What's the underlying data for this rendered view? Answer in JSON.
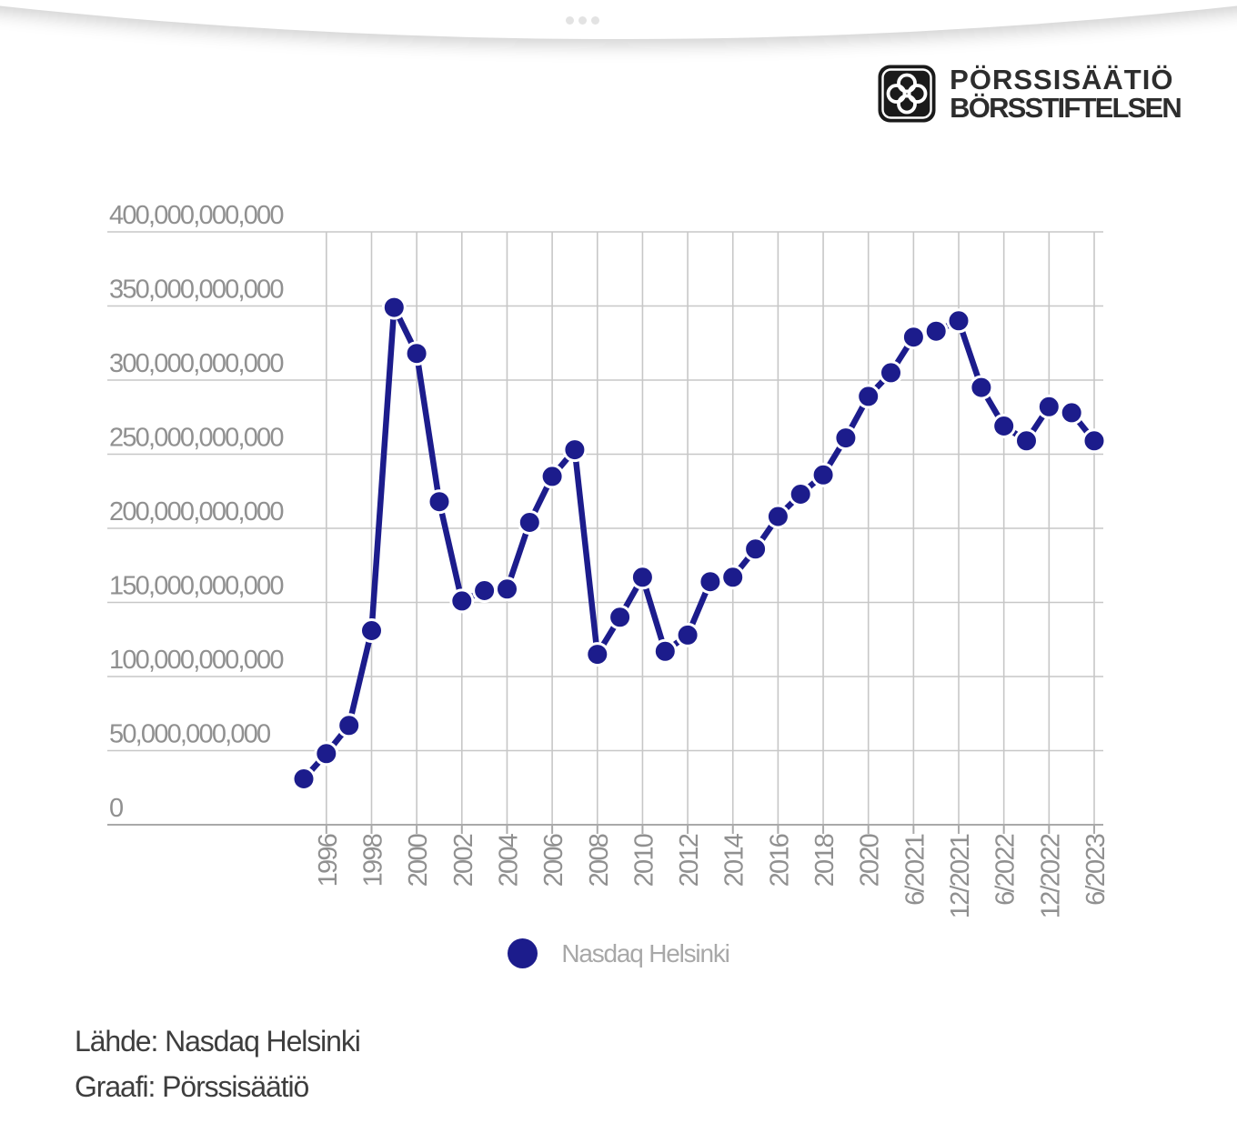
{
  "window": {
    "handle_dots_icon": "ellipsis-handle"
  },
  "header": {
    "logo_icon": "porssisaatio-clover-icon",
    "logo_line1": "PÖRSSISÄÄTIÖ",
    "logo_line2": "BÖRSSTIFTELSEN"
  },
  "chart_data": {
    "type": "line",
    "categories": [
      "1995",
      "1996",
      "1997",
      "1998",
      "1999",
      "2000",
      "2001",
      "2002",
      "2003",
      "2004",
      "2005",
      "2006",
      "2007",
      "2008",
      "2009",
      "2010",
      "2011",
      "2012",
      "2013",
      "2014",
      "2015",
      "2016",
      "2017",
      "2018",
      "2019",
      "2020",
      "3/2021",
      "6/2021",
      "9/2021",
      "12/2021",
      "3/2022",
      "6/2022",
      "9/2022",
      "12/2022",
      "3/2023",
      "6/2023"
    ],
    "series": [
      {
        "name": "Nasdaq Helsinki",
        "color": "#1c1c8c",
        "values": [
          31000000000,
          48000000000,
          67000000000,
          131000000000,
          349000000000,
          318000000000,
          218000000000,
          151000000000,
          158000000000,
          159000000000,
          204000000000,
          235000000000,
          253000000000,
          115000000000,
          140000000000,
          167000000000,
          117000000000,
          128000000000,
          164000000000,
          167000000000,
          186000000000,
          208000000000,
          223000000000,
          236000000000,
          261000000000,
          289000000000,
          305000000000,
          329000000000,
          333000000000,
          340000000000,
          295000000000,
          269000000000,
          259000000000,
          282000000000,
          278000000000,
          259000000000
        ]
      }
    ],
    "x_tick_labels": [
      "1996",
      "1998",
      "2000",
      "2002",
      "2004",
      "2006",
      "2008",
      "2010",
      "2012",
      "2014",
      "2016",
      "2018",
      "2020",
      "6/2021",
      "12/2021",
      "6/2022",
      "12/2022",
      "6/2023"
    ],
    "y_tick_labels": [
      "0",
      "50,000,000,000",
      "100,000,000,000",
      "150,000,000,000",
      "200,000,000,000",
      "250,000,000,000",
      "300,000,000,000",
      "350,000,000,000",
      "400,000,000,000"
    ],
    "ylim": [
      0,
      400000000000
    ],
    "grid": true,
    "legend_position": "bottom"
  },
  "legend": {
    "marker_color": "#1c1c8c",
    "label": "Nasdaq Helsinki"
  },
  "footer": {
    "source_line": "Lähde: Nasdaq Helsinki",
    "credit_line": "Graafi: Pörssisäätiö"
  }
}
